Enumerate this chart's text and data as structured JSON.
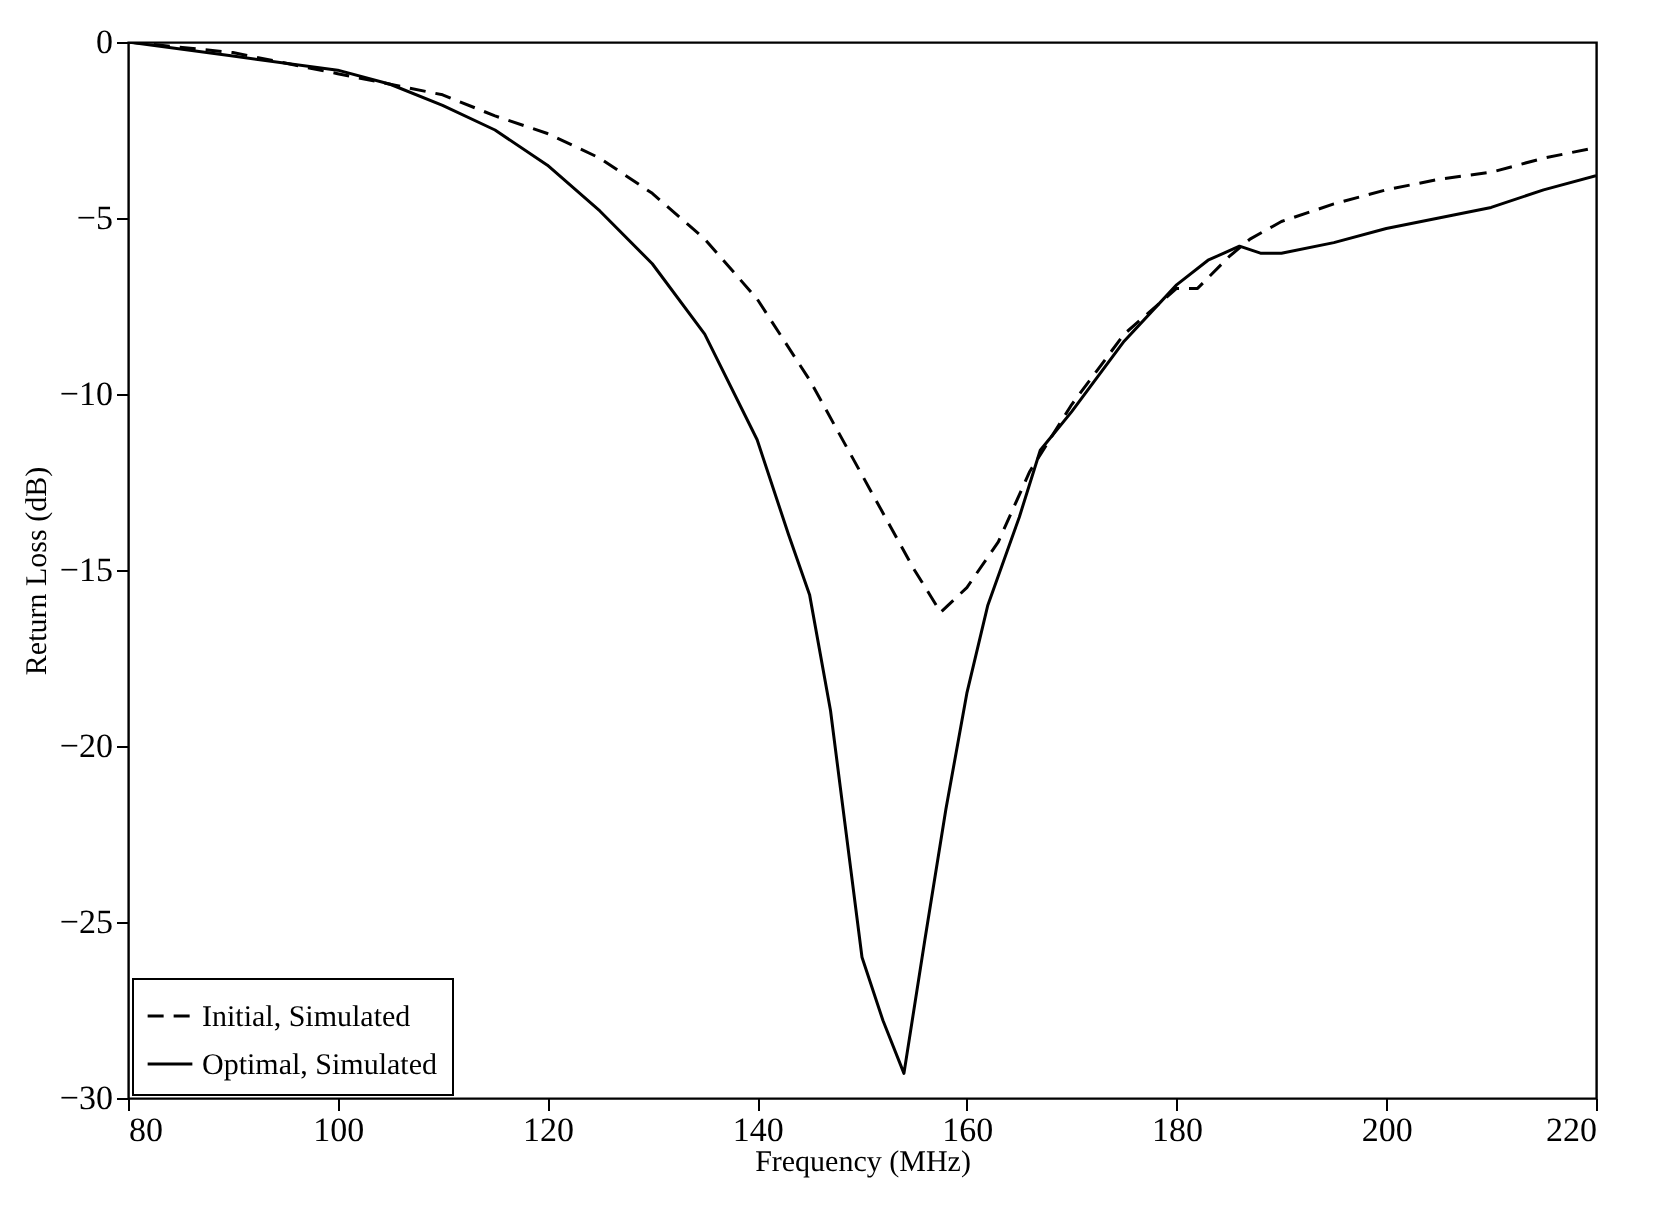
{
  "chart_data": {
    "type": "line",
    "xlabel": "Frequency (MHz)",
    "ylabel": "Return Loss (dB)",
    "xlim": [
      80,
      220
    ],
    "xticks": [
      80,
      100,
      120,
      140,
      160,
      180,
      200,
      220
    ],
    "ylim": [
      -30,
      0
    ],
    "yticks": [
      -30,
      -25,
      -20,
      -15,
      -10,
      -5,
      0
    ],
    "grid": false,
    "legend": "bottom left",
    "series": [
      {
        "name": "Initial, Simulated",
        "color": "#000000",
        "line_style": "dashed",
        "x": [
          80,
          90,
          100,
          105,
          110,
          115,
          120,
          125,
          130,
          135,
          140,
          145,
          150,
          155,
          157.5,
          160,
          163,
          166,
          170,
          175,
          180,
          182,
          185,
          187,
          190,
          195,
          200,
          205,
          210,
          215,
          220
        ],
        "values": [
          0,
          -0.3,
          -0.9,
          -1.2,
          -1.5,
          -2.1,
          -2.6,
          -3.3,
          -4.3,
          -5.6,
          -7.3,
          -9.6,
          -12.3,
          -15.0,
          -16.2,
          -15.5,
          -14.2,
          -12.2,
          -10.3,
          -8.3,
          -7.0,
          -7.0,
          -6.1,
          -5.6,
          -5.1,
          -4.6,
          -4.2,
          -3.9,
          -3.7,
          -3.3,
          -3.0
        ]
      },
      {
        "name": "Optimal, Simulated",
        "color": "#000000",
        "line_style": "solid",
        "x": [
          80,
          90,
          100,
          105,
          110,
          115,
          120,
          125,
          130,
          135,
          140,
          143,
          145,
          147,
          150,
          152,
          154,
          156,
          158,
          160,
          162,
          165,
          167,
          170,
          175,
          180,
          183,
          186,
          188,
          190,
          195,
          200,
          205,
          210,
          215,
          220
        ],
        "values": [
          0,
          -0.4,
          -0.8,
          -1.2,
          -1.8,
          -2.5,
          -3.5,
          -4.8,
          -6.3,
          -8.3,
          -11.3,
          -14.0,
          -15.7,
          -19.0,
          -26.0,
          -27.8,
          -29.3,
          -25.5,
          -21.8,
          -18.5,
          -16.0,
          -13.5,
          -11.6,
          -10.5,
          -8.5,
          -6.9,
          -6.2,
          -5.8,
          -6.0,
          -6.0,
          -5.7,
          -5.3,
          -5.0,
          -4.7,
          -4.2,
          -3.8
        ]
      }
    ]
  }
}
